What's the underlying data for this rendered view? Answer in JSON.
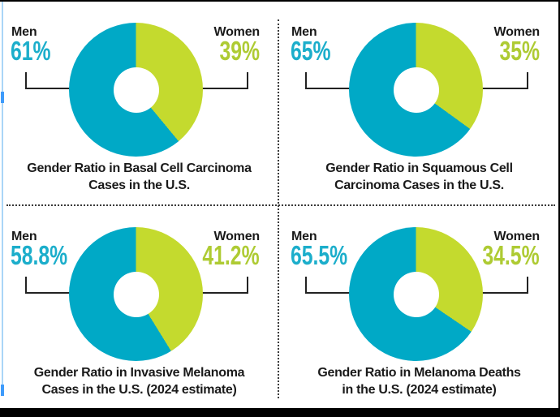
{
  "colors": {
    "men": "#00A9C6",
    "women": "#C4DA2E",
    "men_text": "#1CAECB",
    "women_text": "#AECB33",
    "title_text": "#1A1A1A",
    "left_edge_line": "#A9D5F7",
    "left_edge_marker": "#3E9BFB"
  },
  "chart_data": [
    {
      "type": "pie",
      "donut": true,
      "title": "Gender Ratio in Basal Cell Carcinoma Cases in the U.S.",
      "title_lines": [
        "Gender Ratio in Basal Cell Carcinoma",
        "Cases in the U.S."
      ],
      "categories": [
        "Men",
        "Women"
      ],
      "values": [
        61,
        39
      ],
      "labels": {
        "men": "Men",
        "women": "Women",
        "men_value": "61%",
        "women_value": "39%"
      }
    },
    {
      "type": "pie",
      "donut": true,
      "title": "Gender Ratio in Squamous Cell Carcinoma Cases in the U.S.",
      "title_lines": [
        "Gender Ratio in Squamous Cell",
        "Carcinoma Cases in the U.S."
      ],
      "categories": [
        "Men",
        "Women"
      ],
      "values": [
        65,
        35
      ],
      "labels": {
        "men": "Men",
        "women": "Women",
        "men_value": "65%",
        "women_value": "35%"
      }
    },
    {
      "type": "pie",
      "donut": true,
      "title": "Gender Ratio in Invasive Melanoma Cases in the U.S. (2024 estimate)",
      "title_lines": [
        "Gender Ratio in Invasive Melanoma",
        "Cases in the U.S. (2024 estimate)"
      ],
      "categories": [
        "Men",
        "Women"
      ],
      "values": [
        58.8,
        41.2
      ],
      "labels": {
        "men": "Men",
        "women": "Women",
        "men_value": "58.8%",
        "women_value": "41.2%"
      }
    },
    {
      "type": "pie",
      "donut": true,
      "title": "Gender Ratio in Melanoma Deaths in the U.S. (2024 estimate)",
      "title_lines": [
        "Gender Ratio in Melanoma Deaths",
        "in the U.S. (2024 estimate)"
      ],
      "categories": [
        "Men",
        "Women"
      ],
      "values": [
        65.5,
        34.5
      ],
      "labels": {
        "men": "Men",
        "women": "Women",
        "men_value": "65.5%",
        "women_value": "34.5%"
      }
    }
  ]
}
